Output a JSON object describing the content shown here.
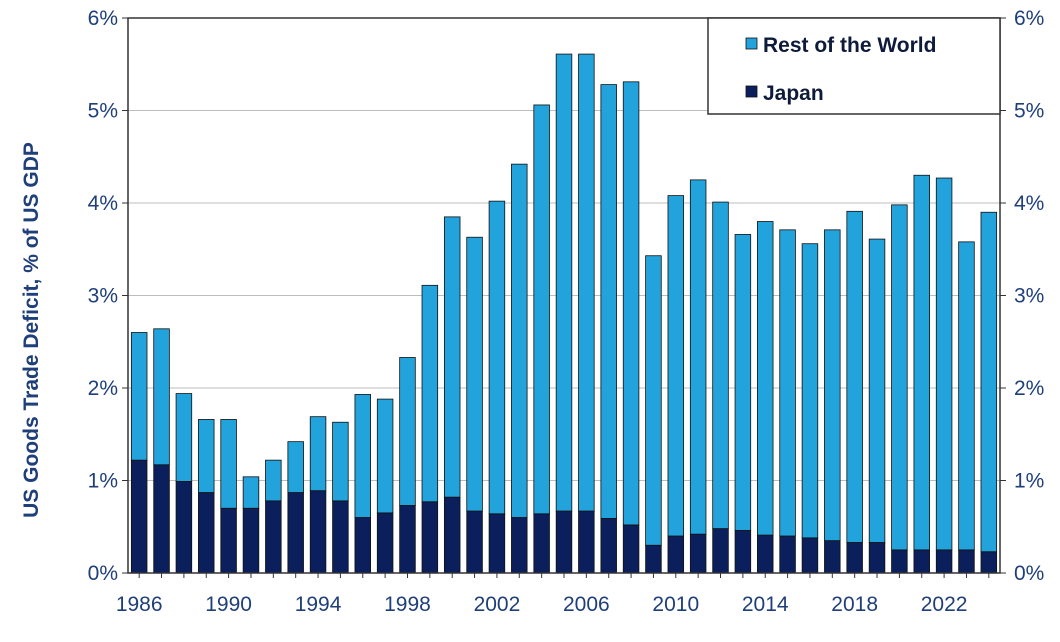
{
  "chart_data": {
    "type": "bar",
    "stacked": true,
    "title": "",
    "xlabel": "",
    "ylabel": "US Goods Trade Deficit, % of US GDP",
    "ylim": [
      0,
      6
    ],
    "y_ticks": [
      "0%",
      "1%",
      "2%",
      "3%",
      "4%",
      "5%",
      "6%"
    ],
    "y2_ticks": [
      "0%",
      "1%",
      "2%",
      "3%",
      "4%",
      "5%",
      "6%"
    ],
    "x_tick_labels": [
      "1986",
      "1990",
      "1994",
      "1998",
      "2002",
      "2006",
      "2010",
      "2014",
      "2018",
      "2022"
    ],
    "grid": "horizontal",
    "legend_position": "top-right",
    "categories": [
      1986,
      1987,
      1988,
      1989,
      1990,
      1991,
      1992,
      1993,
      1994,
      1995,
      1996,
      1997,
      1998,
      1999,
      2000,
      2001,
      2002,
      2003,
      2004,
      2005,
      2006,
      2007,
      2008,
      2009,
      2010,
      2011,
      2012,
      2013,
      2014,
      2015,
      2016,
      2017,
      2018,
      2019,
      2020,
      2021,
      2022,
      2023,
      2024
    ],
    "legend_order": [
      "Rest of the World",
      "Japan"
    ],
    "series": [
      {
        "name": "Japan",
        "color": "#0b1f5c",
        "values": [
          1.22,
          1.17,
          0.99,
          0.87,
          0.7,
          0.7,
          0.78,
          0.87,
          0.89,
          0.78,
          0.6,
          0.65,
          0.73,
          0.77,
          0.82,
          0.67,
          0.64,
          0.6,
          0.64,
          0.67,
          0.67,
          0.59,
          0.52,
          0.3,
          0.4,
          0.42,
          0.48,
          0.46,
          0.41,
          0.4,
          0.38,
          0.35,
          0.33,
          0.33,
          0.25,
          0.25,
          0.25,
          0.25,
          0.23
        ]
      },
      {
        "name": "Rest of the World",
        "color": "#22a3dc",
        "values": [
          1.38,
          1.47,
          0.95,
          0.79,
          0.96,
          0.34,
          0.44,
          0.55,
          0.8,
          0.85,
          1.33,
          1.23,
          1.6,
          2.34,
          3.03,
          2.96,
          3.38,
          3.82,
          4.42,
          4.94,
          4.94,
          4.69,
          4.79,
          3.13,
          3.68,
          3.83,
          3.53,
          3.2,
          3.39,
          3.31,
          3.18,
          3.36,
          3.58,
          3.28,
          3.73,
          4.05,
          4.02,
          3.33,
          3.67
        ]
      }
    ]
  }
}
